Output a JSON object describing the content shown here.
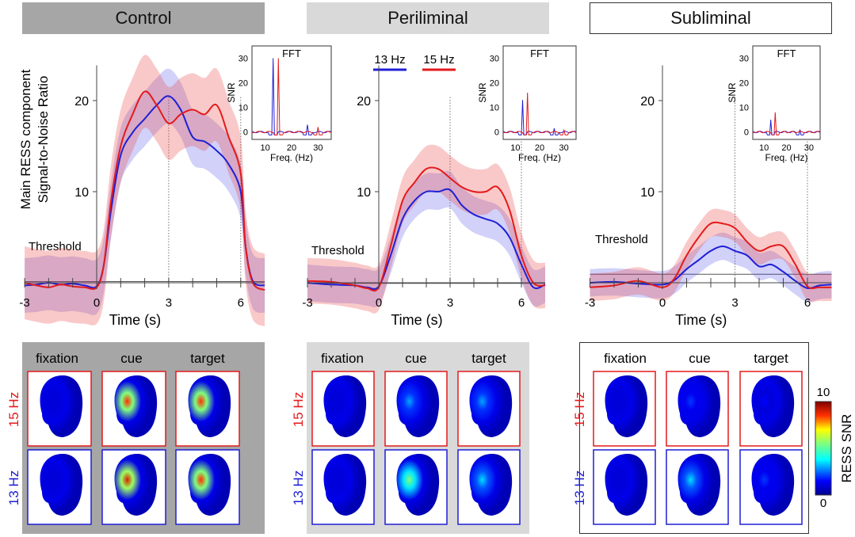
{
  "headers": {
    "control": "Control",
    "peri": "Periliminal",
    "sub": "Subliminal"
  },
  "legend": [
    {
      "label": "13 Hz",
      "color": "#1f1fd6"
    },
    {
      "label": "15 Hz",
      "color": "#e31a1c"
    }
  ],
  "ylabel_line1": "Main RESS component",
  "ylabel_line2": "Signal-to-Noise Ratio",
  "xlabel": "Time (s)",
  "threshold_label": "Threshold",
  "inset": {
    "title": "FFT",
    "xlabel": "Freq. (Hz)",
    "ylabel": "SNR"
  },
  "topo": {
    "col_labels": [
      "fixation",
      "cue",
      "target"
    ],
    "row_labels": [
      "15 Hz",
      "13 Hz"
    ],
    "colorbar_label": "RESS SNR",
    "colorbar_max": "10",
    "colorbar_min": "0"
  },
  "chart_data": [
    {
      "type": "line",
      "panel": "Control",
      "xlabel": "Time (s)",
      "ylabel": "Main RESS component Signal-to-Noise Ratio",
      "xlim": [
        -3,
        7
      ],
      "ylim": [
        -1.5,
        23
      ],
      "xticks": [
        -3,
        0,
        3,
        6
      ],
      "yticks": [
        10,
        20
      ],
      "threshold": 1.0,
      "series": [
        {
          "name": "13 Hz",
          "x": [
            -3,
            -2.5,
            -2,
            -1.5,
            -1,
            -0.5,
            0,
            0.3,
            0.6,
            1,
            1.5,
            2,
            2.5,
            3,
            3.5,
            4,
            4.5,
            5,
            5.5,
            6,
            6.2,
            6.5,
            7
          ],
          "y": [
            -0.3,
            -0.2,
            0,
            -0.2,
            -0.1,
            -0.3,
            -0.4,
            2,
            8,
            14,
            16.5,
            18,
            19.5,
            20.5,
            19,
            16,
            15.5,
            14.5,
            13,
            10,
            4,
            0.2,
            -0.3
          ],
          "ci": 3
        },
        {
          "name": "15 Hz",
          "x": [
            -3,
            -2.5,
            -2,
            -1.5,
            -1,
            -0.5,
            0,
            0.3,
            0.6,
            1,
            1.5,
            2,
            2.5,
            3,
            3.5,
            4,
            4.5,
            5,
            5.5,
            6,
            6.2,
            6.5,
            7
          ],
          "y": [
            0,
            -0.3,
            -0.5,
            -0.2,
            -0.4,
            -0.5,
            -0.5,
            2,
            9,
            15,
            18.5,
            21,
            19.5,
            17.5,
            18.5,
            19,
            18.5,
            19.5,
            16,
            12,
            4,
            0,
            -0.8
          ],
          "ci": 4
        }
      ],
      "inset_fft": {
        "title": "FFT",
        "xlabel": "Freq. (Hz)",
        "ylabel": "SNR",
        "xlim": [
          5,
          35
        ],
        "ylim": [
          -3,
          35
        ],
        "xticks": [
          10,
          20,
          30
        ],
        "yticks": [
          0,
          10,
          20,
          30
        ],
        "peaks": {
          "13 Hz": [
            [
              13,
              30
            ],
            [
              26,
              3
            ]
          ],
          "15 Hz": [
            [
              15,
              30
            ],
            [
              30,
              2
            ]
          ]
        }
      }
    },
    {
      "type": "line",
      "panel": "Periliminal",
      "xlabel": "Time (s)",
      "xlim": [
        -3,
        7
      ],
      "ylim": [
        -1.5,
        23
      ],
      "xticks": [
        -3,
        0,
        3,
        6
      ],
      "yticks": [
        10,
        20
      ],
      "threshold": 0.8,
      "series": [
        {
          "name": "13 Hz",
          "x": [
            -3,
            -2,
            -1,
            -0.5,
            0,
            0.5,
            1,
            1.5,
            2,
            2.5,
            3,
            3.5,
            4,
            4.5,
            5,
            5.5,
            6,
            6.5,
            7
          ],
          "y": [
            0,
            -0.2,
            -0.3,
            -0.5,
            -0.4,
            3,
            7,
            9,
            10,
            10,
            10.2,
            8.5,
            7.5,
            7,
            6.5,
            5,
            2,
            -0.5,
            -0.2
          ],
          "ci": 2
        },
        {
          "name": "15 Hz",
          "x": [
            -3,
            -2,
            -1,
            -0.5,
            0,
            0.5,
            1,
            1.5,
            2,
            2.5,
            3,
            3.5,
            4,
            4.5,
            5,
            5.5,
            6,
            6.5,
            7
          ],
          "y": [
            0.2,
            0.1,
            -0.3,
            -0.6,
            -0.5,
            4,
            9,
            11,
            12.5,
            12.5,
            11.5,
            10.5,
            10,
            10,
            10.5,
            8,
            3,
            0,
            -0.3
          ],
          "ci": 2.5
        }
      ],
      "inset_fft": {
        "title": "FFT",
        "xlabel": "Freq. (Hz)",
        "ylabel": "SNR",
        "xlim": [
          5,
          35
        ],
        "ylim": [
          -3,
          35
        ],
        "xticks": [
          10,
          20,
          30
        ],
        "yticks": [
          0,
          10,
          20,
          30
        ],
        "peaks": {
          "13 Hz": [
            [
              13,
              13
            ],
            [
              26,
              1.5
            ]
          ],
          "15 Hz": [
            [
              15,
              16
            ],
            [
              30,
              1
            ]
          ]
        }
      }
    },
    {
      "type": "line",
      "panel": "Subliminal",
      "xlabel": "Time (s)",
      "xlim": [
        -3,
        7
      ],
      "ylim": [
        -1.5,
        23
      ],
      "xticks": [
        -3,
        0,
        3,
        6
      ],
      "yticks": [
        10,
        20
      ],
      "threshold": 1.8,
      "series": [
        {
          "name": "13 Hz",
          "x": [
            -3,
            -2,
            -1,
            0,
            0.5,
            1,
            1.5,
            2,
            2.5,
            3,
            3.5,
            4,
            4.5,
            5,
            5.5,
            6,
            6.5,
            7
          ],
          "y": [
            0,
            0.1,
            -0.1,
            -0.2,
            0.3,
            1.5,
            2.5,
            3.5,
            4,
            3.5,
            3,
            1.8,
            2,
            1.2,
            0.2,
            -0.6,
            -0.3,
            -0.2
          ],
          "ci": 1.5
        },
        {
          "name": "15 Hz",
          "x": [
            -3,
            -2,
            -1,
            0,
            0.5,
            1,
            1.5,
            2,
            2.5,
            3,
            3.5,
            4,
            4.5,
            5,
            5.5,
            6,
            6.5,
            7
          ],
          "y": [
            -0.5,
            -0.3,
            0.2,
            -0.5,
            0.5,
            3,
            5,
            6.5,
            6.5,
            6,
            4.5,
            3.5,
            4,
            4,
            2,
            -0.4,
            -0.5,
            -0.5
          ],
          "ci": 1.5
        }
      ],
      "inset_fft": {
        "title": "FFT",
        "xlabel": "Freq. (Hz)",
        "ylabel": "SNR",
        "xlim": [
          5,
          35
        ],
        "ylim": [
          -3,
          35
        ],
        "xticks": [
          10,
          20,
          30
        ],
        "yticks": [
          0,
          10,
          20,
          30
        ],
        "peaks": {
          "13 Hz": [
            [
              13,
              5
            ],
            [
              26,
              1
            ]
          ],
          "15 Hz": [
            [
              15,
              8
            ]
          ]
        }
      }
    }
  ],
  "topo_values": {
    "Control": {
      "15 Hz": [
        0.05,
        0.85,
        0.85
      ],
      "13 Hz": [
        0.05,
        0.9,
        0.85
      ]
    },
    "Periliminal": {
      "15 Hz": [
        0.05,
        0.3,
        0.3
      ],
      "13 Hz": [
        0.05,
        0.55,
        0.35
      ]
    },
    "Subliminal": {
      "15 Hz": [
        0.05,
        0.2,
        0.15
      ],
      "13 Hz": [
        0.05,
        0.35,
        0.2
      ]
    }
  }
}
